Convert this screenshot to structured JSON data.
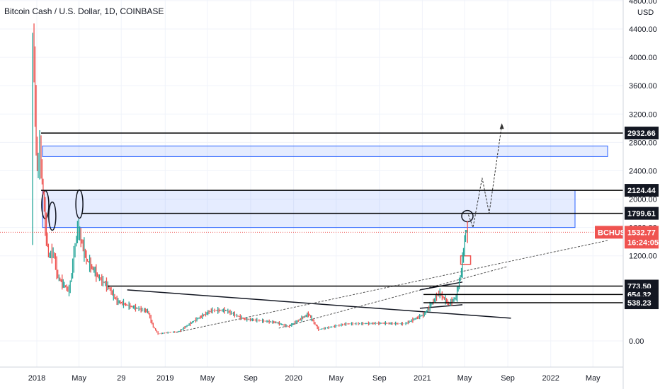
{
  "header": {
    "title": "Bitcoin Cash / U.S. Dollar, 1D, COINBASE"
  },
  "chart_data": {
    "type": "line",
    "title": "Bitcoin Cash / U.S. Dollar, 1D, COINBASE",
    "currency_label": "USD",
    "price_ticks": [
      "4800.00",
      "4400.00",
      "4000.00",
      "3600.00",
      "3200.00",
      "2800.00",
      "2400.00",
      "2000.00",
      "1600.00",
      "1200.00",
      "0.00"
    ],
    "price_tick_values": [
      4800,
      4400,
      4000,
      3600,
      3200,
      2800,
      2400,
      2000,
      1600,
      1200,
      0
    ],
    "ylim": [
      -320,
      4800
    ],
    "time_ticks": [
      "2018",
      "May",
      "29",
      "2019",
      "May",
      "Sep",
      "2020",
      "May",
      "Sep",
      "2021",
      "May",
      "Sep",
      "2022",
      "May"
    ],
    "time_tick_dates": [
      "2018-01-01",
      "2018-05-01",
      "2018-08-29",
      "2019-01-01",
      "2019-05-01",
      "2019-09-01",
      "2020-01-01",
      "2020-05-01",
      "2020-09-01",
      "2021-01-01",
      "2021-05-01",
      "2021-09-01",
      "2022-01-01",
      "2022-05-01"
    ],
    "series": [
      {
        "x": [
          "2017-12-20",
          "2017-12-24",
          "2018-01-05",
          "2018-01-13",
          "2018-01-28",
          "2018-02-06",
          "2018-02-20",
          "2018-03-05",
          "2018-03-20",
          "2018-04-06",
          "2018-04-30",
          "2018-05-25",
          "2018-06-28",
          "2018-07-25",
          "2018-08-20",
          "2018-09-20",
          "2018-10-15",
          "2018-11-15",
          "2018-12-01",
          "2018-12-15",
          "2019-01-15",
          "2019-02-10",
          "2019-04-01",
          "2019-05-15",
          "2019-06-25",
          "2019-08-15",
          "2019-09-25",
          "2019-11-15",
          "2019-12-20",
          "2020-02-15",
          "2020-03-15",
          "2020-06-01",
          "2020-09-15",
          "2020-11-15",
          "2021-01-10",
          "2021-02-20",
          "2021-03-20",
          "2021-04-10",
          "2021-04-25",
          "2021-05-07",
          "2021-05-12"
        ],
        "values": [
          1400,
          4300,
          2400,
          2700,
          1650,
          1200,
          1250,
          900,
          800,
          700,
          1600,
          1150,
          900,
          770,
          560,
          500,
          460,
          420,
          200,
          100,
          120,
          130,
          300,
          430,
          430,
          310,
          290,
          260,
          200,
          380,
          160,
          240,
          250,
          240,
          380,
          680,
          520,
          620,
          1000,
          1550,
          1532.77
        ]
      }
    ],
    "levels": [
      {
        "value": 2932.66,
        "label": "2932.66"
      },
      {
        "value": 2124.44,
        "label": "2124.44"
      },
      {
        "value": 1799.61,
        "label": "1799.61"
      },
      {
        "value": 773.5,
        "label": "773.50"
      },
      {
        "value": 654.32,
        "label": "654.32"
      },
      {
        "value": 538.23,
        "label": "538.23"
      }
    ],
    "zones": [
      {
        "from": 2600,
        "to": 2750
      },
      {
        "from": 1600,
        "to": 2124
      }
    ],
    "last_price": {
      "symbol": "BCHUSD",
      "value": 1532.77,
      "label": "1532.77",
      "countdown": "16:24:05"
    },
    "colors": {
      "up": "#26a69a",
      "down": "#ef5350",
      "zone": "#2962ff",
      "label": "#ef5350"
    },
    "grid": true
  }
}
